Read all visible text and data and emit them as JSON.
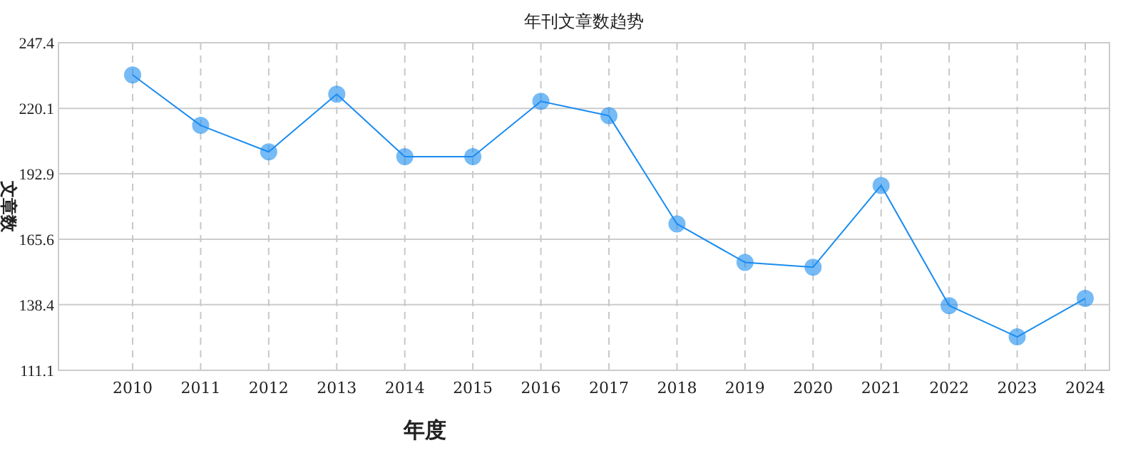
{
  "chart_data": {
    "type": "line",
    "title": "年刊文章数趋势",
    "xlabel": "年度",
    "ylabel": "文章数",
    "categories": [
      "2010",
      "2011",
      "2012",
      "2013",
      "2014",
      "2015",
      "2016",
      "2017",
      "2018",
      "2019",
      "2020",
      "2021",
      "2022",
      "2023",
      "2024"
    ],
    "series": [
      {
        "color": "#1a8cf0",
        "values": [
          234,
          213,
          202,
          226,
          200,
          200,
          223,
          217,
          172,
          156,
          154,
          188,
          138,
          125,
          141
        ]
      }
    ],
    "ylim": [
      111.1,
      247.4
    ],
    "yticks": [
      111.1,
      138.4,
      165.6,
      192.9,
      220.1,
      247.4
    ],
    "grid": true,
    "marker": "circle",
    "line_style": "solid"
  }
}
